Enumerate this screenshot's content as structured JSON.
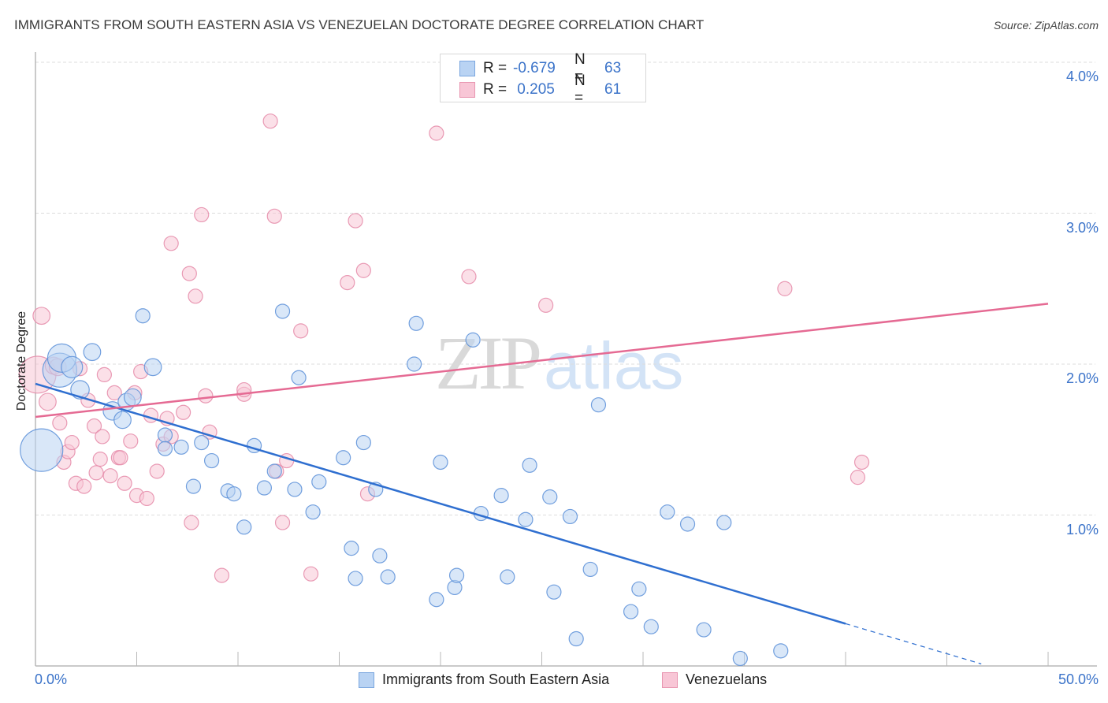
{
  "title": "IMMIGRANTS FROM SOUTH EASTERN ASIA VS VENEZUELAN DOCTORATE DEGREE CORRELATION CHART",
  "source": "Source: ZipAtlas.com",
  "watermark": {
    "zip": "ZIP",
    "atlas": "atlas"
  },
  "colors": {
    "blue_fill": "#b9d3f3",
    "blue_stroke": "#5b8fd8",
    "blue_line": "#2f6fd0",
    "pink_fill": "#f8c6d6",
    "pink_stroke": "#e58aa8",
    "pink_line": "#e56a93",
    "tick_label": "#3b73c9",
    "grid": "#dcdcdc"
  },
  "legend_top": [
    {
      "r_label": "R =",
      "r_value": "-0.679",
      "n_label": "N =",
      "n_value": "63"
    },
    {
      "r_label": "R =",
      "r_value": " 0.205",
      "n_label": "N =",
      "n_value": "61"
    }
  ],
  "legend_bottom": [
    {
      "label": "Immigrants from South Eastern Asia"
    },
    {
      "label": "Venezuelans"
    }
  ],
  "chart_data": {
    "type": "scatter",
    "title": "IMMIGRANTS FROM SOUTH EASTERN ASIA VS VENEZUELAN DOCTORATE DEGREE CORRELATION CHART",
    "xlabel": "",
    "ylabel": "Doctorate Degree",
    "xlim": [
      0,
      50
    ],
    "ylim": [
      0,
      4.0
    ],
    "x_tick_labels": [
      "0.0%",
      "50.0%"
    ],
    "y_ticks": [
      1.0,
      2.0,
      3.0,
      4.0
    ],
    "y_tick_labels": [
      "1.0%",
      "2.0%",
      "3.0%",
      "4.0%"
    ],
    "grid": true,
    "legend_position": "top-center",
    "series": [
      {
        "name": "Immigrants from South Eastern Asia",
        "r": -0.679,
        "n": 63,
        "trend": {
          "x0": 0,
          "y0": 1.87,
          "x1": 40,
          "y1": 0.28,
          "dashed_to_x": 46.7
        },
        "points": [
          [
            0.3,
            1.43,
            3
          ],
          [
            1.2,
            1.96,
            2.4
          ],
          [
            1.3,
            2.04,
            2
          ],
          [
            1.8,
            1.98,
            1.5
          ],
          [
            2.2,
            1.83,
            1.3
          ],
          [
            2.8,
            2.08,
            1.2
          ],
          [
            3.8,
            1.69,
            1.3
          ],
          [
            4.3,
            1.63,
            1.2
          ],
          [
            4.5,
            1.75,
            1.2
          ],
          [
            4.8,
            1.78,
            1.2
          ],
          [
            5.3,
            2.32,
            1
          ],
          [
            5.8,
            1.98,
            1.2
          ],
          [
            6.4,
            1.53,
            1
          ],
          [
            6.4,
            1.44,
            1
          ],
          [
            7.2,
            1.45,
            1
          ],
          [
            7.8,
            1.19,
            1
          ],
          [
            8.2,
            1.48,
            1
          ],
          [
            8.7,
            1.36,
            1
          ],
          [
            9.5,
            1.16,
            1
          ],
          [
            9.8,
            1.14,
            1
          ],
          [
            10.3,
            0.92,
            1
          ],
          [
            10.8,
            1.46,
            1
          ],
          [
            11.3,
            1.18,
            1
          ],
          [
            11.8,
            1.29,
            1
          ],
          [
            12.2,
            2.35,
            1
          ],
          [
            12.8,
            1.17,
            1
          ],
          [
            13.0,
            1.91,
            1
          ],
          [
            13.7,
            1.02,
            1
          ],
          [
            14.0,
            1.22,
            1
          ],
          [
            15.2,
            1.38,
            1
          ],
          [
            15.6,
            0.78,
            1
          ],
          [
            15.8,
            0.58,
            1
          ],
          [
            16.2,
            1.48,
            1
          ],
          [
            16.8,
            1.17,
            1
          ],
          [
            17.0,
            0.73,
            1
          ],
          [
            17.4,
            0.59,
            1
          ],
          [
            18.7,
            2.0,
            1
          ],
          [
            18.8,
            2.27,
            1
          ],
          [
            19.8,
            0.44,
            1
          ],
          [
            20.0,
            1.35,
            1
          ],
          [
            20.7,
            0.52,
            1
          ],
          [
            20.8,
            0.6,
            1
          ],
          [
            21.6,
            2.16,
            1
          ],
          [
            22.0,
            1.01,
            1
          ],
          [
            23.0,
            1.13,
            1
          ],
          [
            23.3,
            0.59,
            1
          ],
          [
            24.2,
            0.97,
            1
          ],
          [
            24.4,
            1.33,
            1
          ],
          [
            25.4,
            1.12,
            1
          ],
          [
            25.6,
            0.49,
            1
          ],
          [
            26.4,
            0.99,
            1
          ],
          [
            26.7,
            0.18,
            1
          ],
          [
            27.4,
            0.64,
            1
          ],
          [
            27.8,
            1.73,
            1
          ],
          [
            29.4,
            0.36,
            1
          ],
          [
            29.8,
            0.51,
            1
          ],
          [
            30.4,
            0.26,
            1
          ],
          [
            31.2,
            1.02,
            1
          ],
          [
            32.2,
            0.94,
            1
          ],
          [
            33.0,
            0.24,
            1
          ],
          [
            34.0,
            0.95,
            1
          ],
          [
            34.8,
            0.05,
            1
          ],
          [
            36.8,
            0.1,
            1
          ]
        ]
      },
      {
        "name": "Venezuelans",
        "r": 0.205,
        "n": 61,
        "trend": {
          "x0": 0,
          "y0": 1.65,
          "x1": 50,
          "y1": 2.4
        },
        "points": [
          [
            0.1,
            1.93,
            2.6
          ],
          [
            0.3,
            2.32,
            1.2
          ],
          [
            0.6,
            1.75,
            1.2
          ],
          [
            0.9,
            1.99,
            1.2
          ],
          [
            1.1,
            1.98,
            1.2
          ],
          [
            1.2,
            1.61,
            1
          ],
          [
            1.4,
            1.35,
            1
          ],
          [
            1.6,
            1.42,
            1
          ],
          [
            1.8,
            1.48,
            1
          ],
          [
            2.0,
            1.21,
            1
          ],
          [
            2.4,
            1.19,
            1
          ],
          [
            2.6,
            1.76,
            1
          ],
          [
            2.9,
            1.59,
            1
          ],
          [
            3.0,
            1.28,
            1
          ],
          [
            3.2,
            1.37,
            1
          ],
          [
            3.3,
            1.52,
            1
          ],
          [
            3.4,
            1.93,
            1
          ],
          [
            3.7,
            1.26,
            1
          ],
          [
            3.9,
            1.81,
            1
          ],
          [
            4.1,
            1.38,
            1
          ],
          [
            4.2,
            1.38,
            1
          ],
          [
            4.4,
            1.21,
            1
          ],
          [
            4.7,
            1.49,
            1
          ],
          [
            4.9,
            1.81,
            1
          ],
          [
            5.0,
            1.13,
            1
          ],
          [
            5.2,
            1.95,
            1
          ],
          [
            5.5,
            1.11,
            1
          ],
          [
            5.7,
            1.66,
            1
          ],
          [
            6.0,
            1.29,
            1
          ],
          [
            6.3,
            1.47,
            1
          ],
          [
            6.5,
            1.64,
            1
          ],
          [
            6.7,
            1.52,
            1
          ],
          [
            6.7,
            2.8,
            1
          ],
          [
            7.3,
            1.68,
            1
          ],
          [
            7.6,
            2.6,
            1
          ],
          [
            7.7,
            0.95,
            1
          ],
          [
            7.9,
            2.45,
            1
          ],
          [
            8.2,
            2.99,
            1
          ],
          [
            8.4,
            1.79,
            1
          ],
          [
            8.6,
            1.55,
            1
          ],
          [
            9.2,
            0.6,
            1
          ],
          [
            10.3,
            1.8,
            1
          ],
          [
            10.3,
            1.83,
            1
          ],
          [
            11.6,
            3.61,
            1
          ],
          [
            11.8,
            2.98,
            1
          ],
          [
            11.9,
            1.29,
            1
          ],
          [
            12.2,
            0.95,
            1
          ],
          [
            12.4,
            1.36,
            1
          ],
          [
            13.1,
            2.22,
            1
          ],
          [
            13.6,
            0.61,
            1
          ],
          [
            15.4,
            2.54,
            1
          ],
          [
            15.8,
            2.95,
            1
          ],
          [
            16.2,
            2.62,
            1
          ],
          [
            16.4,
            1.14,
            1
          ],
          [
            19.8,
            3.53,
            1
          ],
          [
            21.4,
            2.58,
            1
          ],
          [
            25.2,
            2.39,
            1
          ],
          [
            37.0,
            2.5,
            1
          ],
          [
            40.8,
            1.35,
            1
          ],
          [
            40.6,
            1.25,
            1
          ],
          [
            2.2,
            1.97,
            1
          ]
        ]
      }
    ]
  }
}
